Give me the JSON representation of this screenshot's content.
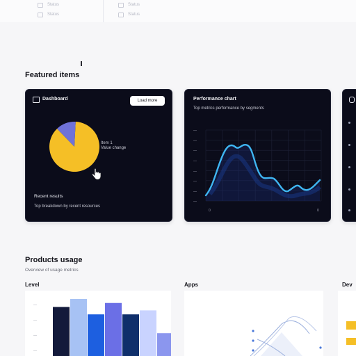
{
  "top_strip": {
    "left_items": [
      "Status",
      "Status"
    ],
    "right_items": [
      "Status",
      "Status"
    ]
  },
  "featured": {
    "title": "Featured items"
  },
  "card_pie": {
    "title": "Dashboard",
    "button_label": "Load more",
    "legend_lines": [
      "Item 1",
      "Value change"
    ],
    "footer_title": "Recent results",
    "footer_subtitle": "Top breakdown by recent resources",
    "slices": [
      {
        "value": 0.87,
        "color": "#f5bf26"
      },
      {
        "value": 0.13,
        "color": "#6f72d8"
      }
    ]
  },
  "card_line": {
    "title": "Performance chart",
    "subtitle": "Top metrics performance by segments",
    "y_ticks": [
      "—",
      "—",
      "—",
      "—",
      "—",
      "—",
      "—",
      "—"
    ],
    "x_ticks": [
      "0",
      "0"
    ],
    "line_color": "#3fb6f2"
  },
  "products": {
    "title": "Products usage",
    "subtitle": "Overview of usage metrics"
  },
  "columns": {
    "left_label": "Level",
    "mid_label": "Apps",
    "right_label": "Dev"
  },
  "bars": {
    "values": [
      0.86,
      1.0,
      0.73,
      0.93,
      0.73,
      0.8,
      0.4
    ],
    "colors": [
      "#131a3b",
      "#a7c2f4",
      "#1d5fe0",
      "#6b6fe6",
      "#0f2f6b",
      "#c9d3ff",
      "#8b96ee"
    ],
    "y_ticks": [
      "—",
      "—",
      "—",
      "—"
    ]
  },
  "colors": {
    "card_bg": "#0b0c1a",
    "accent_yellow": "#f5bf26",
    "accent_blue": "#3fb6f2"
  }
}
